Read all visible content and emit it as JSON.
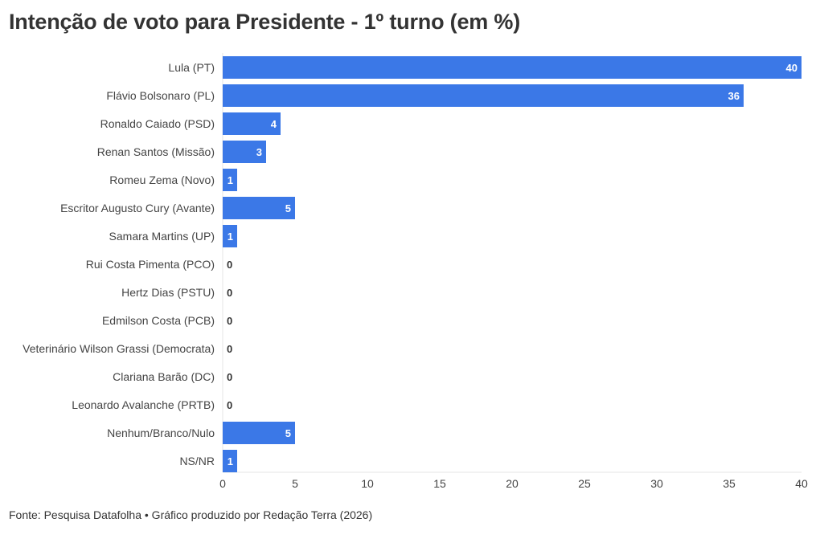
{
  "chart_data": {
    "type": "bar",
    "orientation": "horizontal",
    "title": "Intenção de voto para Presidente - 1º turno (em %)",
    "categories": [
      "Lula (PT)",
      "Flávio Bolsonaro (PL)",
      "Ronaldo Caiado (PSD)",
      "Renan Santos (Missão)",
      "Romeu Zema (Novo)",
      "Escritor Augusto Cury (Avante)",
      "Samara Martins (UP)",
      "Rui Costa Pimenta (PCO)",
      "Hertz Dias (PSTU)",
      "Edmilson Costa (PCB)",
      "Veterinário Wilson Grassi (Democrata)",
      "Clariana Barão (DC)",
      "Leonardo Avalanche (PRTB)",
      "Nenhum/Branco/Nulo",
      "NS/NR"
    ],
    "values": [
      40,
      36,
      4,
      3,
      1,
      5,
      1,
      0,
      0,
      0,
      0,
      0,
      0,
      5,
      1
    ],
    "xlim": [
      0,
      40
    ],
    "xticks": [
      0,
      5,
      10,
      15,
      20,
      25,
      30,
      35,
      40
    ],
    "grid": false,
    "data_labels": true,
    "bar_color": "#3b78e7",
    "label_color_inside": "#ffffff",
    "label_color_outside": "#333333"
  },
  "source": "Fonte: Pesquisa Datafolha • Gráfico produzido por Redação Terra (2026)"
}
